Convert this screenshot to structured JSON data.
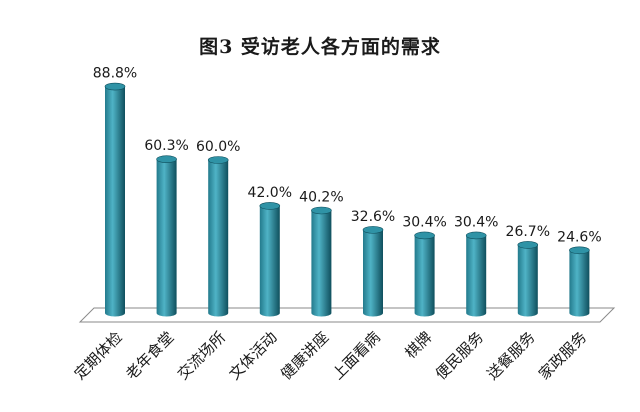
{
  "chart_data": {
    "type": "bar",
    "title": "图3  受访老人各方面的需求",
    "categories": [
      "定期体检",
      "老年食堂",
      "交流场所",
      "文体活动",
      "健康讲座",
      "上面看病",
      "棋牌",
      "便民服务",
      "送餐服务",
      "家政服务"
    ],
    "values": [
      88.8,
      60.3,
      60.0,
      42.0,
      40.2,
      32.6,
      30.4,
      30.4,
      26.7,
      24.6
    ],
    "value_labels": [
      "88.8%",
      "60.3%",
      "60.0%",
      "42.0%",
      "40.2%",
      "32.6%",
      "30.4%",
      "30.4%",
      "26.7%",
      "24.6%"
    ],
    "ylim": [
      0,
      100
    ],
    "grid": false,
    "legend": "none",
    "bar_style": "3d-cylinder",
    "colors": {
      "bar_body": "#237a8c",
      "bar_highlight": "#4fb3c6",
      "bar_dark": "#0f4f5d",
      "bar_top": "#2f93a6",
      "floor_fill": "#ffffff",
      "floor_stroke": "#8a8a8a"
    }
  }
}
